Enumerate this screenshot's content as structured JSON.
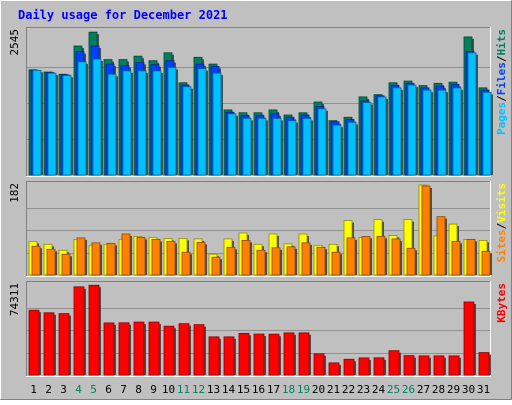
{
  "chart_data": [
    {
      "type": "bar",
      "panel": "hits",
      "title": "Daily usage for December 2021",
      "ymax_label": "2545",
      "ylim": [
        0,
        2545
      ],
      "legend": {
        "position": "right",
        "items": [
          {
            "label": "Pages",
            "color": "#00c0ff"
          },
          {
            "label": "Files",
            "color": "#0040ff"
          },
          {
            "label": "Hits",
            "color": "#00805c"
          }
        ],
        "separator": "/"
      },
      "categories": [
        "1",
        "2",
        "3",
        "4",
        "5",
        "6",
        "7",
        "8",
        "9",
        "10",
        "11",
        "12",
        "13",
        "14",
        "15",
        "16",
        "17",
        "18",
        "19",
        "20",
        "21",
        "22",
        "23",
        "24",
        "25",
        "26",
        "27",
        "28",
        "29",
        "30",
        "31"
      ],
      "series": [
        {
          "name": "Hits",
          "color": "#00805c",
          "values": [
            1860,
            1820,
            1780,
            2280,
            2525,
            2040,
            2040,
            2100,
            2020,
            2160,
            1630,
            2080,
            1960,
            1150,
            1100,
            1100,
            1150,
            1060,
            1100,
            1290,
            960,
            1020,
            1380,
            1420,
            1630,
            1660,
            1580,
            1620,
            1640,
            2440,
            1540
          ]
        },
        {
          "name": "Files",
          "color": "#0040ff",
          "values": [
            1850,
            1810,
            1770,
            2180,
            2280,
            1960,
            1930,
            1990,
            1950,
            2020,
            1590,
            1960,
            1920,
            1110,
            1050,
            1050,
            1080,
            1020,
            1060,
            1210,
            940,
            980,
            1310,
            1400,
            1580,
            1620,
            1540,
            1570,
            1600,
            2180,
            1500
          ]
        },
        {
          "name": "Pages",
          "color": "#00c0ff",
          "values": [
            1850,
            1800,
            1760,
            2000,
            2050,
            1780,
            1840,
            1840,
            1840,
            1900,
            1560,
            1880,
            1800,
            1080,
            1000,
            1000,
            1000,
            960,
            1000,
            1170,
            880,
            930,
            1280,
            1380,
            1540,
            1590,
            1500,
            1500,
            1540,
            2160,
            1460
          ]
        }
      ]
    },
    {
      "type": "bar",
      "panel": "visits",
      "ymax_label": "182",
      "ylim": [
        0,
        182
      ],
      "legend": {
        "position": "right",
        "items": [
          {
            "label": "Sites",
            "color": "#ff8000"
          },
          {
            "label": "Visits",
            "color": "#ffff00"
          }
        ],
        "separator": "/"
      },
      "categories": [
        "1",
        "2",
        "3",
        "4",
        "5",
        "6",
        "7",
        "8",
        "9",
        "10",
        "11",
        "12",
        "13",
        "14",
        "15",
        "16",
        "17",
        "18",
        "19",
        "20",
        "21",
        "22",
        "23",
        "24",
        "25",
        "26",
        "27",
        "28",
        "29",
        "30",
        "31"
      ],
      "series": [
        {
          "name": "Visits",
          "color": "#ffff00",
          "values": [
            68,
            62,
            50,
            72,
            60,
            62,
            72,
            78,
            76,
            74,
            74,
            73,
            42,
            73,
            85,
            62,
            83,
            63,
            83,
            60,
            62,
            110,
            76,
            112,
            80,
            112,
            182,
            79,
            103,
            72,
            70
          ]
        },
        {
          "name": "Sites",
          "color": "#ff8000",
          "values": [
            58,
            52,
            42,
            75,
            65,
            64,
            83,
            76,
            72,
            68,
            46,
            66,
            36,
            56,
            70,
            50,
            55,
            57,
            65,
            56,
            46,
            75,
            78,
            78,
            73,
            54,
            180,
            118,
            68,
            72,
            48
          ]
        }
      ]
    },
    {
      "type": "bar",
      "panel": "kbytes",
      "ymax_label": "74311",
      "ylim": [
        0,
        74311
      ],
      "legend": {
        "position": "right",
        "items": [
          {
            "label": "KBytes",
            "color": "#ff0000"
          }
        ],
        "separator": "/"
      },
      "categories": [
        "1",
        "2",
        "3",
        "4",
        "5",
        "6",
        "7",
        "8",
        "9",
        "10",
        "11",
        "12",
        "13",
        "14",
        "15",
        "16",
        "17",
        "18",
        "19",
        "20",
        "21",
        "22",
        "23",
        "24",
        "25",
        "26",
        "27",
        "28",
        "29",
        "30",
        "31"
      ],
      "weekend_days": [
        "4",
        "5",
        "11",
        "12",
        "18",
        "19",
        "25",
        "26"
      ],
      "series": [
        {
          "name": "KBytes",
          "color": "#ff0000",
          "values": [
            53500,
            51400,
            50700,
            72800,
            74100,
            43000,
            43100,
            43700,
            43700,
            40300,
            42400,
            41600,
            31500,
            31500,
            34400,
            33800,
            33700,
            34800,
            34800,
            17500,
            10000,
            13000,
            14100,
            14200,
            20100,
            16000,
            15800,
            15800,
            15800,
            60300,
            18500
          ]
        }
      ]
    }
  ]
}
